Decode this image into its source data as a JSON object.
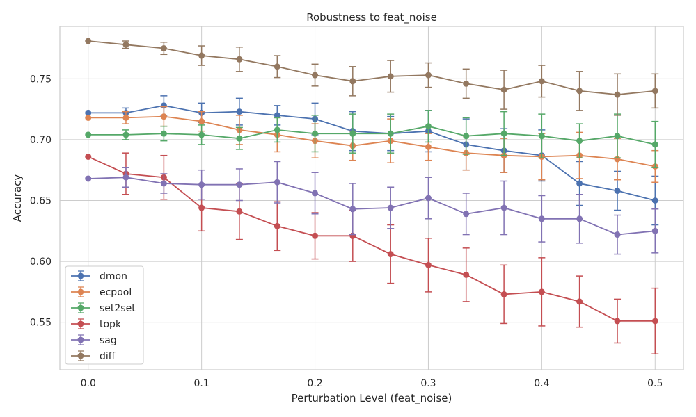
{
  "chart_data": {
    "type": "line",
    "title": "Robustness to feat_noise",
    "xlabel": "Perturbation Level (feat_noise)",
    "ylabel": "Accuracy",
    "xlim": [
      -0.025,
      0.525
    ],
    "ylim": [
      0.511,
      0.793
    ],
    "xticks": [
      0.0,
      0.1,
      0.2,
      0.3,
      0.4,
      0.5
    ],
    "xtick_labels": [
      "0.0",
      "0.1",
      "0.2",
      "0.3",
      "0.4",
      "0.5"
    ],
    "yticks": [
      0.55,
      0.6,
      0.65,
      0.7,
      0.75
    ],
    "ytick_labels": [
      "0.55",
      "0.60",
      "0.65",
      "0.70",
      "0.75"
    ],
    "grid": true,
    "legend_position": "lower-left",
    "x": [
      0.0,
      0.0333,
      0.0667,
      0.1,
      0.1333,
      0.1667,
      0.2,
      0.2333,
      0.2667,
      0.3,
      0.3333,
      0.3667,
      0.4,
      0.4333,
      0.4667,
      0.5
    ],
    "series": [
      {
        "name": "dmon",
        "color": "#4c72b0",
        "values": [
          0.722,
          0.722,
          0.728,
          0.722,
          0.723,
          0.72,
          0.717,
          0.707,
          0.705,
          0.707,
          0.696,
          0.691,
          0.687,
          0.664,
          0.658,
          0.65
        ],
        "errors": [
          0.0,
          0.004,
          0.008,
          0.008,
          0.011,
          0.008,
          0.013,
          0.016,
          0.014,
          0.017,
          0.021,
          0.018,
          0.021,
          0.018,
          0.016,
          0.02
        ]
      },
      {
        "name": "ecpool",
        "color": "#dd8452",
        "values": [
          0.718,
          0.718,
          0.719,
          0.715,
          0.708,
          0.704,
          0.699,
          0.695,
          0.699,
          0.694,
          0.689,
          0.687,
          0.686,
          0.687,
          0.684,
          0.678
        ],
        "errors": [
          0.0,
          0.005,
          0.008,
          0.008,
          0.012,
          0.014,
          0.014,
          0.012,
          0.018,
          0.011,
          0.014,
          0.014,
          0.019,
          0.019,
          0.017,
          0.013
        ]
      },
      {
        "name": "set2set",
        "color": "#55a868",
        "values": [
          0.704,
          0.704,
          0.705,
          0.704,
          0.701,
          0.708,
          0.705,
          0.705,
          0.705,
          0.711,
          0.703,
          0.705,
          0.703,
          0.699,
          0.703,
          0.696
        ],
        "errors": [
          0.0,
          0.004,
          0.006,
          0.008,
          0.009,
          0.01,
          0.015,
          0.016,
          0.016,
          0.013,
          0.015,
          0.018,
          0.018,
          0.014,
          0.018,
          0.019
        ]
      },
      {
        "name": "topk",
        "color": "#c44e52",
        "values": [
          0.686,
          0.672,
          0.669,
          0.644,
          0.641,
          0.629,
          0.621,
          0.621,
          0.606,
          0.597,
          0.589,
          0.573,
          0.575,
          0.567,
          0.551,
          0.551
        ],
        "errors": [
          0.0,
          0.017,
          0.018,
          0.019,
          0.023,
          0.02,
          0.019,
          0.021,
          0.024,
          0.022,
          0.022,
          0.024,
          0.028,
          0.021,
          0.018,
          0.027
        ]
      },
      {
        "name": "sag",
        "color": "#8172b3",
        "values": [
          0.668,
          0.669,
          0.664,
          0.663,
          0.663,
          0.665,
          0.656,
          0.643,
          0.644,
          0.652,
          0.639,
          0.644,
          0.635,
          0.635,
          0.622,
          0.625
        ],
        "errors": [
          0.0,
          0.008,
          0.008,
          0.012,
          0.013,
          0.017,
          0.017,
          0.021,
          0.017,
          0.017,
          0.017,
          0.022,
          0.019,
          0.02,
          0.016,
          0.018
        ]
      },
      {
        "name": "diff",
        "color": "#937860",
        "values": [
          0.781,
          0.778,
          0.775,
          0.769,
          0.766,
          0.76,
          0.753,
          0.748,
          0.752,
          0.753,
          0.746,
          0.741,
          0.748,
          0.74,
          0.737,
          0.74
        ],
        "errors": [
          0.0,
          0.003,
          0.005,
          0.008,
          0.01,
          0.009,
          0.009,
          0.012,
          0.013,
          0.01,
          0.012,
          0.016,
          0.013,
          0.016,
          0.017,
          0.014
        ]
      }
    ]
  }
}
